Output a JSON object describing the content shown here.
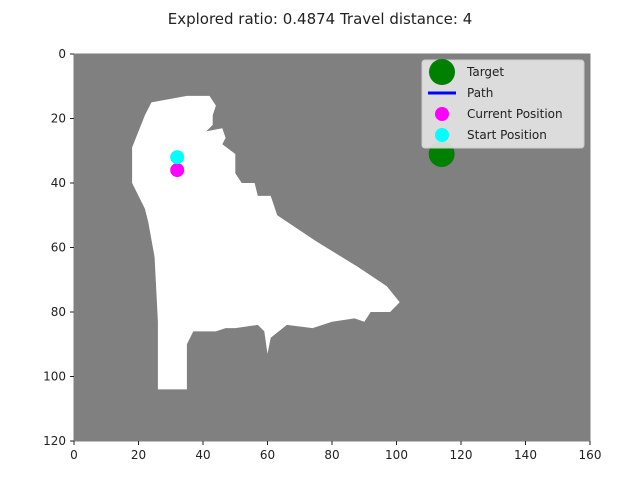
{
  "title": "Explored ratio: 0.4874  Travel distance: 4",
  "chart_data": {
    "type": "scatter",
    "title": "Explored ratio: 0.4874  Travel distance: 4",
    "xlim": [
      0,
      160
    ],
    "ylim": [
      120,
      0
    ],
    "y_inverted": true,
    "grid": false,
    "x_ticks": [
      "0",
      "20",
      "40",
      "60",
      "80",
      "100",
      "120",
      "140",
      "160"
    ],
    "y_ticks": [
      "0",
      "20",
      "40",
      "60",
      "80",
      "100",
      "120"
    ],
    "background_color": "#808080",
    "explored_color": "#ffffff",
    "legend_position": "top-right",
    "legend": [
      {
        "label": "Target",
        "color": "#008000",
        "marker": "circle-large"
      },
      {
        "label": "Path",
        "color": "#0000ff",
        "marker": "line"
      },
      {
        "label": "Current Position",
        "color": "#ff00ff",
        "marker": "circle"
      },
      {
        "label": "Start Position",
        "color": "#00ffff",
        "marker": "circle"
      }
    ],
    "points": {
      "target": {
        "x": 114,
        "y": 31
      },
      "current_position": {
        "x": 32,
        "y": 36
      },
      "start_position": {
        "x": 32,
        "y": 32
      }
    },
    "explored_region_outline": [
      [
        24,
        15
      ],
      [
        35,
        13
      ],
      [
        42,
        13
      ],
      [
        44,
        16
      ],
      [
        43,
        19
      ],
      [
        43,
        22
      ],
      [
        41,
        24
      ],
      [
        46,
        23
      ],
      [
        47,
        26
      ],
      [
        46,
        28
      ],
      [
        50,
        31
      ],
      [
        50,
        37
      ],
      [
        52,
        40
      ],
      [
        56,
        40
      ],
      [
        57,
        44
      ],
      [
        61,
        44
      ],
      [
        63,
        50
      ],
      [
        75,
        58
      ],
      [
        88,
        66
      ],
      [
        97,
        72
      ],
      [
        101,
        77
      ],
      [
        98,
        80
      ],
      [
        92,
        80
      ],
      [
        90,
        83
      ],
      [
        87,
        82
      ],
      [
        80,
        83
      ],
      [
        74,
        85
      ],
      [
        66,
        84
      ],
      [
        61,
        88
      ],
      [
        60,
        93
      ],
      [
        59,
        86
      ],
      [
        57,
        84
      ],
      [
        50,
        85
      ],
      [
        47,
        85
      ],
      [
        44,
        86
      ],
      [
        37,
        86
      ],
      [
        35,
        90
      ],
      [
        35,
        104
      ],
      [
        26,
        104
      ],
      [
        26,
        83
      ],
      [
        25,
        63
      ],
      [
        23,
        52
      ],
      [
        22,
        48
      ],
      [
        18,
        40
      ],
      [
        18,
        29
      ],
      [
        20,
        24
      ],
      [
        22,
        19
      ]
    ]
  }
}
